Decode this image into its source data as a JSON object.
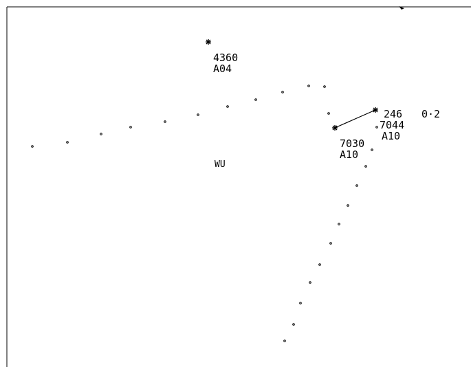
{
  "scope": {
    "stroke_color": "#000000",
    "background_color": "#ffffff"
  },
  "targets": [
    {
      "id": "target-4360",
      "code": "4360",
      "altitude": "A04"
    },
    {
      "id": "target-7044",
      "code": "7044",
      "altitude": "A10",
      "heading": "246",
      "speed": "0·2"
    },
    {
      "id": "target-7030",
      "code": "7030",
      "altitude": "A10"
    }
  ],
  "map_labels": {
    "station": "WU"
  }
}
